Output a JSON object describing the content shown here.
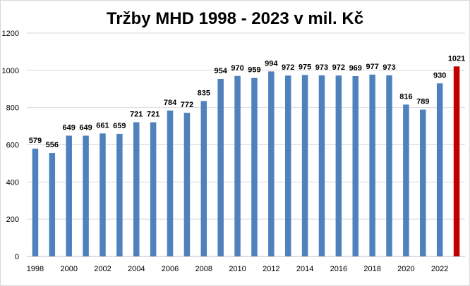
{
  "chart_data": {
    "type": "bar",
    "title": "Tržby MHD 1998 - 2023 v mil. Kč",
    "xlabel": "",
    "ylabel": "",
    "ylim": [
      0,
      1200
    ],
    "yticks": [
      0,
      200,
      400,
      600,
      800,
      1000,
      1200
    ],
    "grid": true,
    "legend": "none",
    "categories": [
      "1998",
      "1999",
      "2000",
      "2001",
      "2002",
      "2003",
      "2004",
      "2005",
      "2006",
      "2007",
      "2008",
      "2009",
      "2010",
      "2011",
      "2012",
      "2013",
      "2014",
      "2015",
      "2016",
      "2017",
      "2018",
      "2019",
      "2020",
      "2021",
      "2022",
      "2023"
    ],
    "values": [
      579,
      556,
      649,
      649,
      661,
      659,
      721,
      721,
      784,
      772,
      835,
      954,
      970,
      959,
      994,
      972,
      975,
      973,
      972,
      969,
      977,
      973,
      816,
      789,
      930,
      1021
    ],
    "x_tick_labels": [
      "1998",
      "",
      "2000",
      "",
      "2002",
      "",
      "2004",
      "",
      "2006",
      "",
      "2008",
      "",
      "2010",
      "",
      "2012",
      "",
      "2014",
      "",
      "2016",
      "",
      "2018",
      "",
      "2020",
      "",
      "2022",
      ""
    ],
    "colors": {
      "bar": "#4f81bd",
      "highlight": "#c00000",
      "grid": "#d9d9d9",
      "axis": "#bfbfbf"
    },
    "highlight_index": 25
  }
}
